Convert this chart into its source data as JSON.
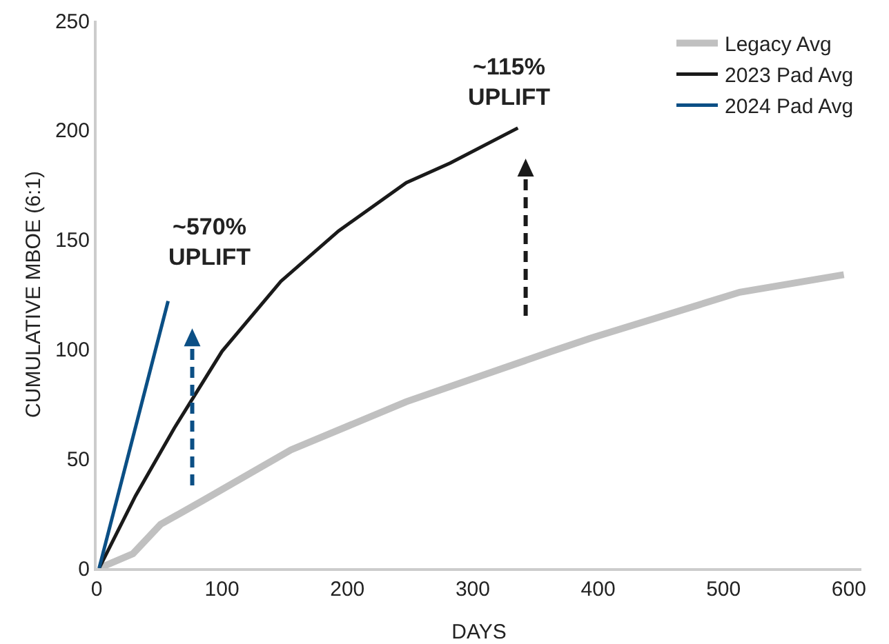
{
  "chart_data": {
    "type": "line",
    "xlabel": "DAYS",
    "ylabel": "CUMULATIVE MBOE (6:1)",
    "series": [
      {
        "name": "Legacy Avg",
        "color": "#c0c0c0",
        "x": [
          2,
          29,
          51,
          85,
          155,
          247,
          363,
          394,
          513,
          596
        ],
        "values": [
          0,
          6.6,
          20,
          31,
          54,
          76,
          99,
          105,
          126,
          134
        ]
      },
      {
        "name": "2023 Pad Avg",
        "color": "#1a1a1a",
        "x": [
          2,
          31,
          62,
          100,
          147,
          193,
          247,
          282,
          336
        ],
        "values": [
          0,
          33,
          64,
          99,
          131,
          154,
          176,
          185,
          201
        ]
      },
      {
        "name": "2024 Pad Avg",
        "color": "#0b4f85",
        "x": [
          2,
          57
        ],
        "values": [
          0,
          122
        ]
      }
    ],
    "xlim": [
      0,
      610
    ],
    "xticks": [
      0,
      100,
      200,
      300,
      400,
      500,
      600
    ],
    "ylim": [
      0,
      250
    ],
    "yticks": [
      0,
      50,
      100,
      150,
      200,
      250
    ],
    "grid": false,
    "legend": "top right",
    "line_style": "solid",
    "marker": "none",
    "annotations": [
      "~570%\nUPLIFT",
      "~115%\nUPLIFT"
    ]
  }
}
